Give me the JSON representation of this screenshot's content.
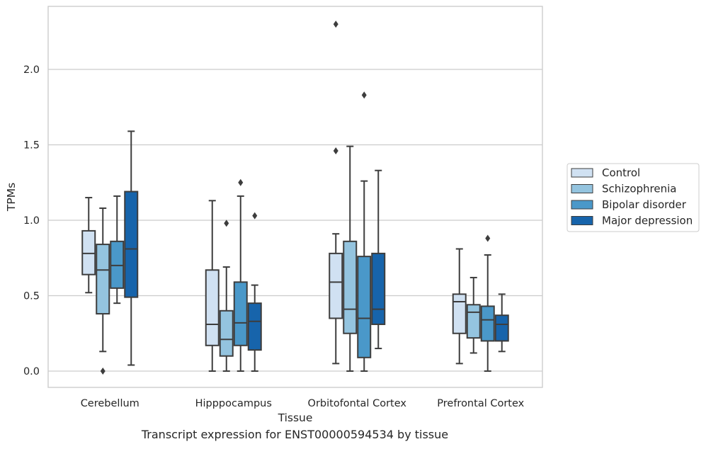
{
  "caption": "Transcript expression for ENST00000594534 by tissue",
  "chart_data": {
    "type": "box",
    "xlabel": "Tissue",
    "ylabel": "TPMs",
    "ylim": [
      -0.11,
      2.41
    ],
    "grid": "horizontal",
    "legend_placement": "right",
    "yticks": [
      0.0,
      0.5,
      1.0,
      1.5,
      2.0
    ],
    "ytick_labels": [
      "0.0",
      "0.5",
      "1.0",
      "1.5",
      "2.0"
    ],
    "categories": [
      "Cerebellum",
      "Hipppocampus",
      "Orbitofontal Cortex",
      "Prefrontal Cortex"
    ],
    "series": [
      {
        "name": "Control",
        "color": "#d0e1f2",
        "boxes": [
          {
            "whislo": 0.52,
            "q1": 0.64,
            "med": 0.78,
            "q3": 0.93,
            "whishi": 1.15,
            "fliers": []
          },
          {
            "whislo": 0.0,
            "q1": 0.17,
            "med": 0.31,
            "q3": 0.67,
            "whishi": 1.13,
            "fliers": []
          },
          {
            "whislo": 0.05,
            "q1": 0.35,
            "med": 0.59,
            "q3": 0.78,
            "whishi": 0.91,
            "fliers": [
              1.46,
              2.3
            ]
          },
          {
            "whislo": 0.05,
            "q1": 0.25,
            "med": 0.46,
            "q3": 0.51,
            "whishi": 0.81,
            "fliers": []
          }
        ]
      },
      {
        "name": "Schizophrenia",
        "color": "#94c4df",
        "boxes": [
          {
            "whislo": 0.13,
            "q1": 0.38,
            "med": 0.67,
            "q3": 0.84,
            "whishi": 1.08,
            "fliers": [
              0.0
            ]
          },
          {
            "whislo": 0.0,
            "q1": 0.1,
            "med": 0.21,
            "q3": 0.4,
            "whishi": 0.69,
            "fliers": [
              0.98
            ]
          },
          {
            "whislo": 0.0,
            "q1": 0.25,
            "med": 0.41,
            "q3": 0.86,
            "whishi": 1.49,
            "fliers": []
          },
          {
            "whislo": 0.12,
            "q1": 0.22,
            "med": 0.39,
            "q3": 0.44,
            "whishi": 0.62,
            "fliers": []
          }
        ]
      },
      {
        "name": "Bipolar disorder",
        "color": "#4a98c9",
        "boxes": [
          {
            "whislo": 0.45,
            "q1": 0.55,
            "med": 0.7,
            "q3": 0.86,
            "whishi": 1.16,
            "fliers": []
          },
          {
            "whislo": 0.0,
            "q1": 0.17,
            "med": 0.32,
            "q3": 0.59,
            "whishi": 1.16,
            "fliers": [
              1.25
            ]
          },
          {
            "whislo": 0.0,
            "q1": 0.09,
            "med": 0.35,
            "q3": 0.76,
            "whishi": 1.26,
            "fliers": [
              1.83
            ]
          },
          {
            "whislo": 0.0,
            "q1": 0.2,
            "med": 0.34,
            "q3": 0.43,
            "whishi": 0.77,
            "fliers": [
              0.88
            ]
          }
        ]
      },
      {
        "name": "Major depression",
        "color": "#1764ab",
        "boxes": [
          {
            "whislo": 0.04,
            "q1": 0.49,
            "med": 0.81,
            "q3": 1.19,
            "whishi": 1.59,
            "fliers": []
          },
          {
            "whislo": 0.0,
            "q1": 0.14,
            "med": 0.33,
            "q3": 0.45,
            "whishi": 0.57,
            "fliers": [
              1.03
            ]
          },
          {
            "whislo": 0.15,
            "q1": 0.31,
            "med": 0.41,
            "q3": 0.78,
            "whishi": 1.33,
            "fliers": []
          },
          {
            "whislo": 0.13,
            "q1": 0.2,
            "med": 0.31,
            "q3": 0.37,
            "whishi": 0.51,
            "fliers": []
          }
        ]
      }
    ]
  }
}
